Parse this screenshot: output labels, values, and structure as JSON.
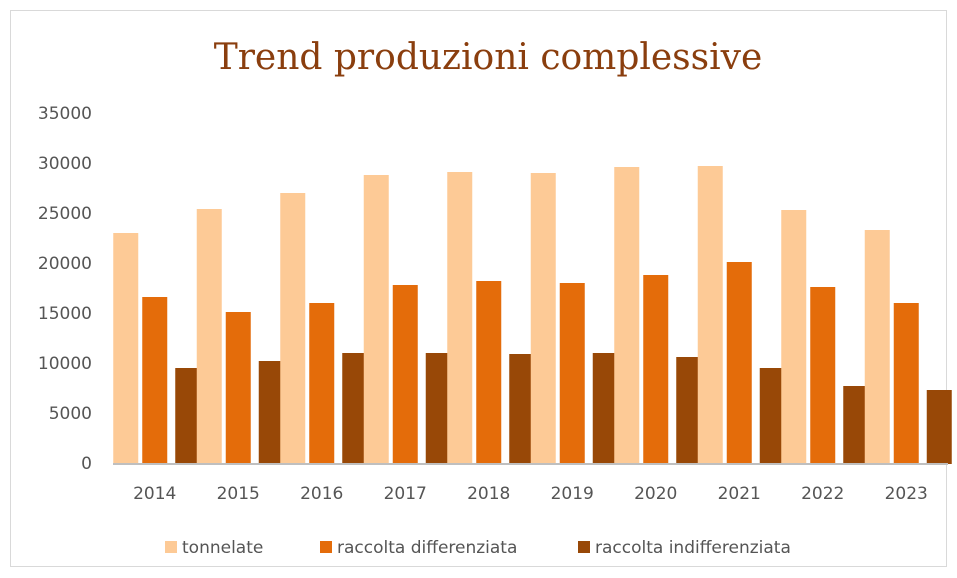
{
  "chart_data": {
    "type": "bar",
    "title": "Trend produzioni complessive",
    "categories": [
      "2014",
      "2015",
      "2016",
      "2017",
      "2018",
      "2019",
      "2020",
      "2021",
      "2022",
      "2023"
    ],
    "series": [
      {
        "name": "tonnelate",
        "color": "#fdca96",
        "values": [
          23100,
          25500,
          27100,
          28900,
          29200,
          29100,
          29700,
          29800,
          25400,
          23400
        ]
      },
      {
        "name": "raccolta differenziata",
        "color": "#e46c0a",
        "values": [
          16700,
          15200,
          16100,
          17900,
          18300,
          18100,
          18900,
          20200,
          17700,
          16100
        ]
      },
      {
        "name": "raccolta indifferenziata",
        "color": "#984807",
        "values": [
          9600,
          10300,
          11100,
          11100,
          11000,
          11100,
          10700,
          9600,
          7800,
          7400
        ]
      }
    ],
    "ylim": [
      0,
      35000
    ],
    "yticks": [
      0,
      5000,
      10000,
      15000,
      20000,
      25000,
      30000,
      35000
    ],
    "grid": false,
    "legend": "bottom"
  }
}
